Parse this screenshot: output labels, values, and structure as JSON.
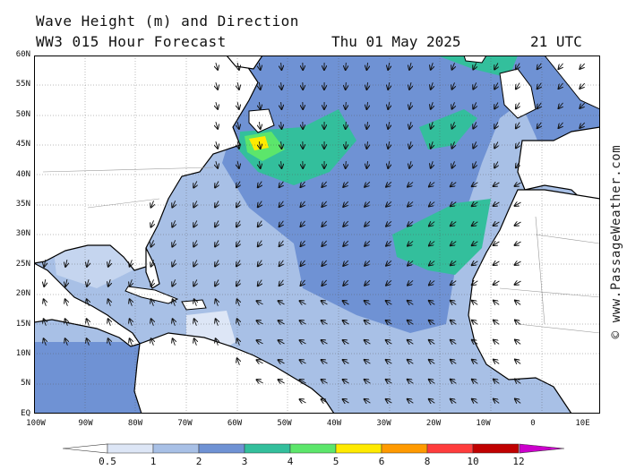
{
  "header": {
    "title": "Wave Height (m) and Direction",
    "model": "WW3 015 Hour Forecast",
    "date": "Thu 01 May 2025",
    "time": "21 UTC"
  },
  "credit": "© www.PassageWeather.com",
  "lat_labels": [
    "60N",
    "55N",
    "50N",
    "45N",
    "40N",
    "35N",
    "30N",
    "25N",
    "20N",
    "15N",
    "10N",
    "5N",
    "EQ"
  ],
  "lon_labels": [
    "100W",
    "90W",
    "80W",
    "70W",
    "60W",
    "50W",
    "40W",
    "30W",
    "20W",
    "10W",
    "0",
    "10E"
  ],
  "colorbar": {
    "labels": [
      "0.5",
      "1",
      "2",
      "3",
      "4",
      "5",
      "6",
      "8",
      "10",
      "12"
    ],
    "colors": [
      "#dde6f6",
      "#a8c0e6",
      "#6f92d4",
      "#33bf9c",
      "#5ce66b",
      "#ffea00",
      "#ff9a00",
      "#ff3c3c",
      "#c00000",
      "#cc00cc"
    ]
  },
  "colors": {
    "land": "#ffffff",
    "sea_low": "#a8c0e6",
    "sea_mid": "#6f92d4",
    "sea_high": "#33bf9c"
  }
}
